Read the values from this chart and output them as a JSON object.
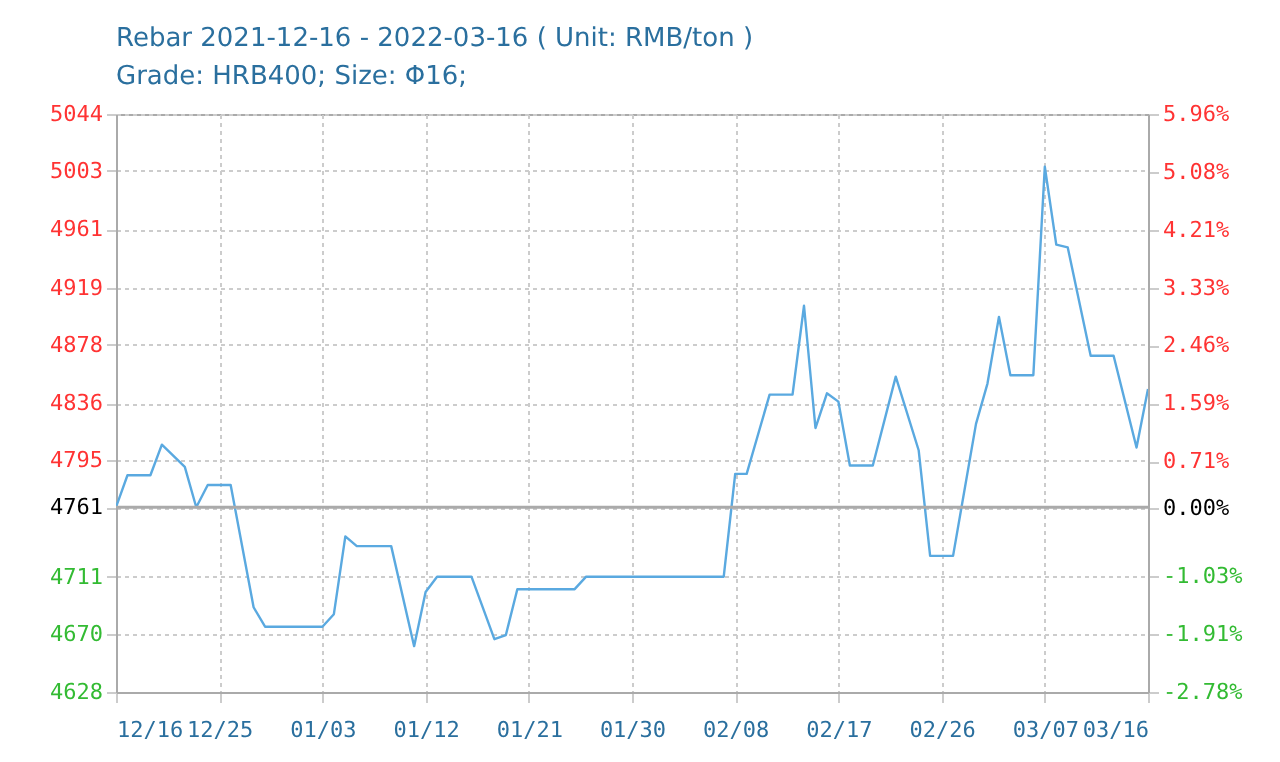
{
  "chart_data": {
    "type": "line",
    "title": "Rebar 2021-12-16 - 2022-03-16    ( Unit: RMB/ton )",
    "subtitle": "Grade: HRB400; Size: Φ16;",
    "x": [
      "2021-12-16",
      "2021-12-17",
      "2021-12-19",
      "2021-12-20",
      "2021-12-22",
      "2021-12-23",
      "2021-12-24",
      "2021-12-26",
      "2021-12-28",
      "2021-12-29",
      "2022-01-03",
      "2022-01-04",
      "2022-01-05",
      "2022-01-06",
      "2022-01-09",
      "2022-01-11",
      "2022-01-12",
      "2022-01-13",
      "2022-01-16",
      "2022-01-18",
      "2022-01-19",
      "2022-01-20",
      "2022-01-25",
      "2022-01-26",
      "2022-02-07",
      "2022-02-08",
      "2022-02-09",
      "2022-02-11",
      "2022-02-13",
      "2022-02-14",
      "2022-02-15",
      "2022-02-16",
      "2022-02-17",
      "2022-02-18",
      "2022-02-20",
      "2022-02-22",
      "2022-02-24",
      "2022-02-25",
      "2022-02-27",
      "2022-03-01",
      "2022-03-02",
      "2022-03-03",
      "2022-03-04",
      "2022-03-06",
      "2022-03-07",
      "2022-03-08",
      "2022-03-09",
      "2022-03-11",
      "2022-03-13",
      "2022-03-15",
      "2022-03-16"
    ],
    "series": [
      {
        "color": "#5aa9e0",
        "values": [
          4761,
          4784,
          4784,
          4806,
          4790,
          4761,
          4777,
          4777,
          4689,
          4675,
          4675,
          4684,
          4740,
          4733,
          4733,
          4661,
          4700,
          4711,
          4711,
          4666,
          4669,
          4702,
          4702,
          4711,
          4711,
          4785,
          4785,
          4842,
          4842,
          4906,
          4818,
          4843,
          4837,
          4791,
          4791,
          4855,
          4802,
          4726,
          4726,
          4821,
          4850,
          4898,
          4856,
          4856,
          5006,
          4950,
          4948,
          4870,
          4870,
          4804,
          4846
        ]
      }
    ],
    "xlim": [
      "2021-12-16",
      "2022-03-16"
    ],
    "xticks": [
      {
        "value": "2021-12-16",
        "label": "12/16"
      },
      {
        "value": "2021-12-25",
        "label": "12/25"
      },
      {
        "value": "2022-01-03",
        "label": "01/03"
      },
      {
        "value": "2022-01-12",
        "label": "01/12"
      },
      {
        "value": "2022-01-21",
        "label": "01/21"
      },
      {
        "value": "2022-01-30",
        "label": "01/30"
      },
      {
        "value": "2022-02-08",
        "label": "02/08"
      },
      {
        "value": "2022-02-17",
        "label": "02/17"
      },
      {
        "value": "2022-02-26",
        "label": "02/26"
      },
      {
        "value": "2022-03-07",
        "label": "03/07"
      },
      {
        "value": "2022-03-16",
        "label": "03/16"
      }
    ],
    "ylim": [
      4628,
      5044
    ],
    "yticks": [
      4628,
      4670,
      4711,
      4761,
      4795,
      4836,
      4878,
      4919,
      4961,
      5003,
      5044
    ],
    "y2lim": [
      -2.78,
      5.96
    ],
    "y2ticks": [
      {
        "value": -2.78,
        "label": "-2.78%"
      },
      {
        "value": -1.91,
        "label": "-1.91%"
      },
      {
        "value": -1.03,
        "label": "-1.03%"
      },
      {
        "value": 0,
        "label": "0.00%"
      },
      {
        "value": 0.71,
        "label": "0.71%"
      },
      {
        "value": 1.59,
        "label": "1.59%"
      },
      {
        "value": 2.46,
        "label": "2.46%"
      },
      {
        "value": 3.33,
        "label": "3.33%"
      },
      {
        "value": 4.21,
        "label": "4.21%"
      },
      {
        "value": 5.08,
        "label": "5.08%"
      },
      {
        "value": 5.96,
        "label": "5.96%"
      }
    ],
    "ref_lines": [
      {
        "axis": "y",
        "value": 4761,
        "color": "#aaaaaa"
      }
    ],
    "grid": true,
    "line_style": "solid"
  }
}
